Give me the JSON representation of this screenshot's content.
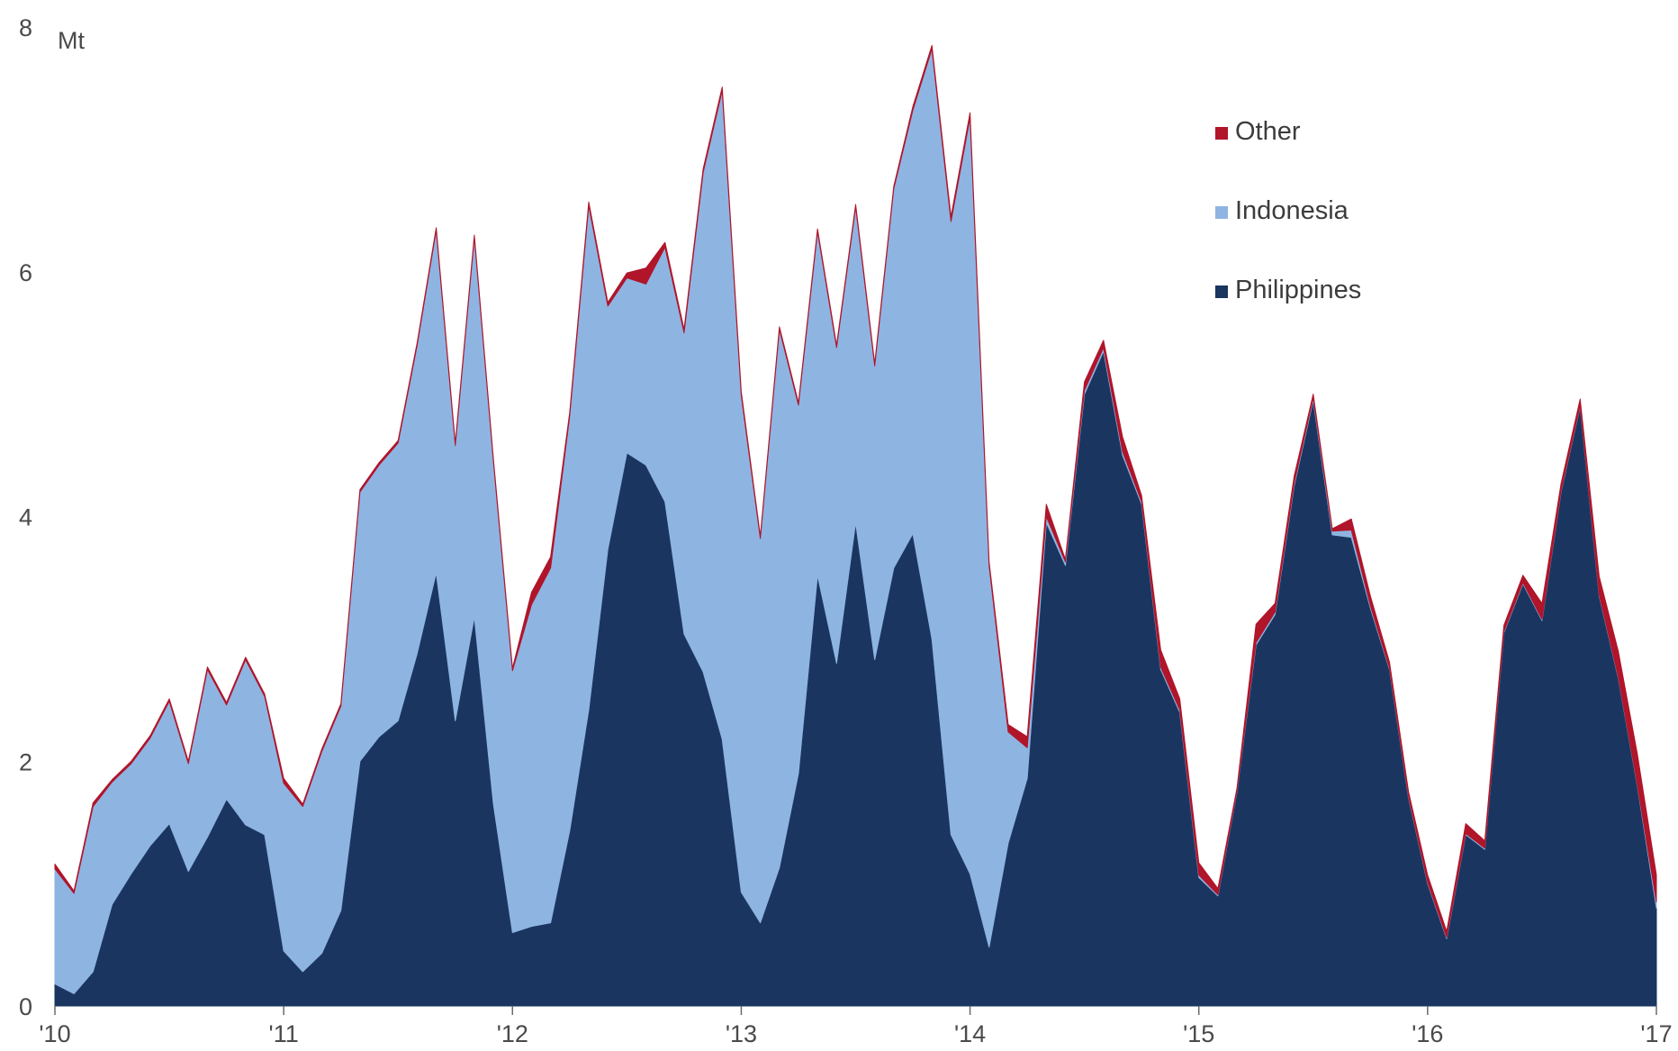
{
  "chart_data": {
    "type": "area",
    "stacked": true,
    "ylabel": "Mt",
    "ylim": [
      0,
      8
    ],
    "yticks": [
      0,
      2,
      4,
      6,
      8
    ],
    "grid": false,
    "legend_position": "top-right",
    "x_tick_labels": [
      "'10",
      "'11",
      "'12",
      "'13",
      "'14",
      "'15",
      "'16",
      "'17"
    ],
    "x_start": "2010-01",
    "x_end": "2017-01",
    "series": [
      {
        "name": "Philippines",
        "color": "#1a3660",
        "values": [
          0.18,
          0.1,
          0.28,
          0.83,
          1.08,
          1.31,
          1.49,
          1.1,
          1.38,
          1.69,
          1.48,
          1.4,
          0.45,
          0.28,
          0.43,
          0.78,
          2.0,
          2.2,
          2.33,
          2.88,
          3.54,
          2.33,
          3.18,
          1.65,
          0.6,
          0.65,
          0.68,
          1.43,
          2.42,
          3.73,
          4.52,
          4.42,
          4.12,
          3.04,
          2.73,
          2.18,
          0.93,
          0.68,
          1.13,
          1.9,
          3.52,
          2.8,
          3.95,
          2.83,
          3.58,
          3.86,
          3.0,
          1.4,
          1.08,
          0.48,
          1.33,
          1.86,
          3.95,
          3.6,
          5.0,
          5.35,
          4.5,
          4.1,
          2.75,
          2.4,
          1.05,
          0.9,
          1.75,
          2.95,
          3.2,
          4.25,
          4.95,
          3.85,
          3.83,
          3.25,
          2.75,
          1.7,
          1.0,
          0.55,
          1.4,
          1.28,
          3.05,
          3.45,
          3.15,
          4.2,
          4.9,
          3.35,
          2.68,
          1.8,
          0.8
        ]
      },
      {
        "name": "Indonesia",
        "color": "#8eb4e2",
        "values": [
          0.94,
          0.82,
          1.35,
          1.0,
          0.9,
          0.88,
          1.0,
          0.88,
          1.37,
          0.77,
          1.35,
          1.13,
          1.37,
          1.35,
          1.65,
          1.67,
          2.2,
          2.22,
          2.27,
          2.52,
          2.8,
          2.25,
          3.1,
          2.8,
          2.14,
          2.63,
          2.9,
          3.39,
          4.12,
          1.99,
          1.43,
          1.48,
          2.08,
          2.46,
          4.08,
          5.3,
          4.06,
          3.14,
          4.4,
          3.01,
          2.81,
          2.58,
          2.58,
          2.4,
          3.1,
          3.46,
          4.82,
          5.01,
          6.18,
          3.12,
          0.91,
          0.25,
          0.05,
          0.03,
          0.03,
          0.03,
          0.03,
          0.02,
          0.02,
          0.02,
          0.02,
          0.01,
          0.01,
          0.02,
          0.02,
          0.02,
          0.02,
          0.03,
          0.06,
          0.02,
          0.01,
          0.01,
          0.01,
          0.01,
          0.01,
          0.01,
          0.01,
          0.01,
          0.01,
          0.01,
          0.01,
          0.01,
          0.01,
          0.01,
          0.05
        ]
      },
      {
        "name": "Other",
        "color": "#b0152a",
        "values": [
          0.04,
          0.02,
          0.03,
          0.02,
          0.02,
          0.02,
          0.02,
          0.02,
          0.02,
          0.02,
          0.02,
          0.02,
          0.04,
          0.02,
          0.02,
          0.02,
          0.02,
          0.02,
          0.02,
          0.02,
          0.02,
          0.02,
          0.02,
          0.02,
          0.02,
          0.1,
          0.09,
          0.03,
          0.03,
          0.03,
          0.04,
          0.13,
          0.04,
          0.03,
          0.03,
          0.03,
          0.03,
          0.02,
          0.02,
          0.02,
          0.02,
          0.02,
          0.02,
          0.02,
          0.02,
          0.03,
          0.03,
          0.04,
          0.04,
          0.03,
          0.06,
          0.09,
          0.1,
          0.02,
          0.07,
          0.06,
          0.12,
          0.05,
          0.14,
          0.09,
          0.1,
          0.05,
          0.02,
          0.15,
          0.07,
          0.06,
          0.03,
          0.02,
          0.09,
          0.08,
          0.05,
          0.04,
          0.06,
          0.05,
          0.08,
          0.06,
          0.05,
          0.06,
          0.13,
          0.06,
          0.05,
          0.15,
          0.21,
          0.25,
          0.22
        ]
      }
    ]
  }
}
